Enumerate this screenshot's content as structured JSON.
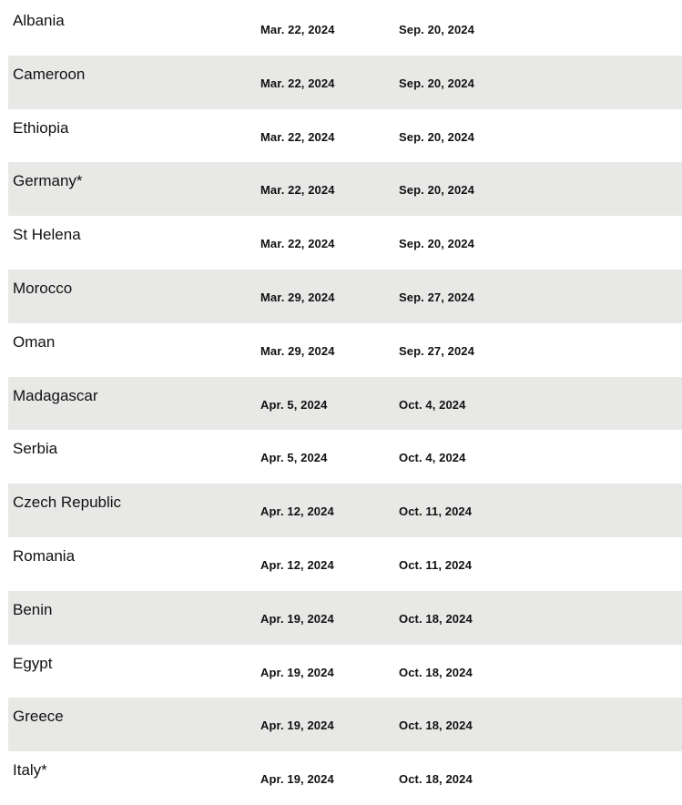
{
  "colors": {
    "alt_row": "#e8e9e7",
    "text": "#111111"
  },
  "rows": [
    {
      "country": "Albania",
      "date1": "Mar. 22, 2024",
      "date2": "Sep. 20, 2024"
    },
    {
      "country": "Cameroon",
      "date1": "Mar. 22, 2024",
      "date2": "Sep. 20, 2024"
    },
    {
      "country": "Ethiopia",
      "date1": "Mar. 22, 2024",
      "date2": "Sep. 20, 2024"
    },
    {
      "country": "Germany*",
      "date1": "Mar. 22, 2024",
      "date2": "Sep. 20, 2024"
    },
    {
      "country": "St Helena",
      "date1": "Mar. 22, 2024",
      "date2": "Sep. 20, 2024"
    },
    {
      "country": "Morocco",
      "date1": "Mar. 29, 2024",
      "date2": "Sep. 27, 2024"
    },
    {
      "country": "Oman",
      "date1": "Mar. 29, 2024",
      "date2": "Sep. 27, 2024"
    },
    {
      "country": "Madagascar",
      "date1": "Apr. 5, 2024",
      "date2": "Oct. 4, 2024"
    },
    {
      "country": "Serbia",
      "date1": "Apr. 5, 2024",
      "date2": "Oct. 4, 2024"
    },
    {
      "country": "Czech Republic",
      "date1": "Apr. 12, 2024",
      "date2": "Oct. 11, 2024"
    },
    {
      "country": "Romania",
      "date1": "Apr. 12, 2024",
      "date2": "Oct. 11, 2024"
    },
    {
      "country": "Benin",
      "date1": "Apr. 19, 2024",
      "date2": "Oct. 18, 2024"
    },
    {
      "country": "Egypt",
      "date1": "Apr. 19, 2024",
      "date2": "Oct. 18, 2024"
    },
    {
      "country": "Greece",
      "date1": "Apr. 19, 2024",
      "date2": "Oct. 18, 2024"
    },
    {
      "country": "Italy*",
      "date1": "Apr. 19, 2024",
      "date2": "Oct. 18, 2024"
    }
  ]
}
